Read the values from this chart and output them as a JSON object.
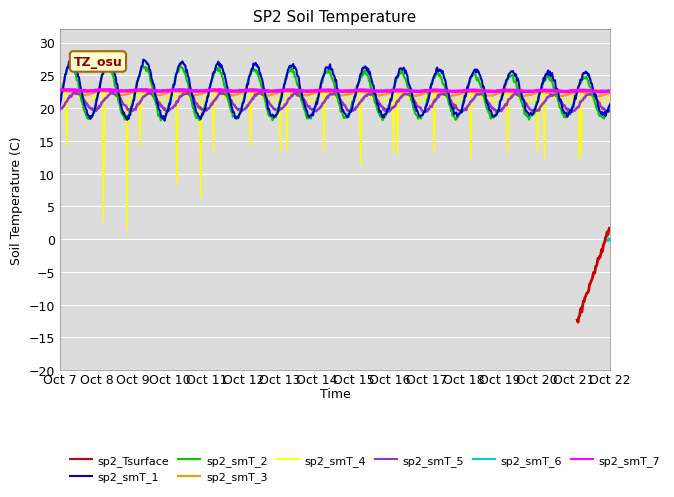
{
  "title": "SP2 Soil Temperature",
  "xlabel": "Time",
  "ylabel": "Soil Temperature (C)",
  "ylim": [
    -20,
    32
  ],
  "background_color": "#dcdcdc",
  "tz_label": "TZ_osu",
  "x_tick_labels": [
    "Oct 7",
    "Oct 8",
    "Oct 9",
    "Oct 10",
    "Oct 11",
    "Oct 12",
    "Oct 13",
    "Oct 14",
    "Oct 15",
    "Oct 16",
    "Oct 17",
    "Oct 18",
    "Oct 19",
    "Oct 20",
    "Oct 21",
    "Oct 22"
  ],
  "series_colors": {
    "sp2_Tsurface": "#cc0000",
    "sp2_smT_1": "#0000cc",
    "sp2_smT_2": "#00cc00",
    "sp2_smT_3": "#ff9900",
    "sp2_smT_4": "#ffff00",
    "sp2_smT_5": "#9933cc",
    "sp2_smT_6": "#00cccc",
    "sp2_smT_7": "#ff00ff"
  }
}
